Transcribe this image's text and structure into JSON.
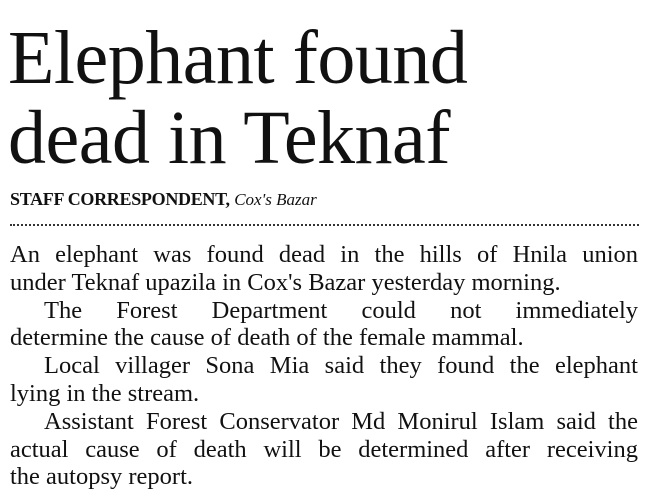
{
  "headline": {
    "lines": [
      "Elephant found",
      "dead in Teknaf"
    ]
  },
  "byline": {
    "author": "STAFF CORRESPONDENT,",
    "location": "Cox's Bazar"
  },
  "paragraphs": [
    {
      "lines": [
        "An elephant was found dead in the hills of Hnila union",
        "under Teknaf upazila in Cox's Bazar yesterday morning."
      ]
    },
    {
      "lines": [
        "The Forest Department could not immediately",
        "determine the cause of death of the female mammal."
      ]
    },
    {
      "lines": [
        "Local villager Sona Mia said they found the elephant",
        "lying in the stream."
      ]
    },
    {
      "lines": [
        "Assistant Forest Conservator Md Monirul Islam said the",
        "actual cause of death will be determined after receiving",
        "the autopsy report."
      ]
    }
  ]
}
